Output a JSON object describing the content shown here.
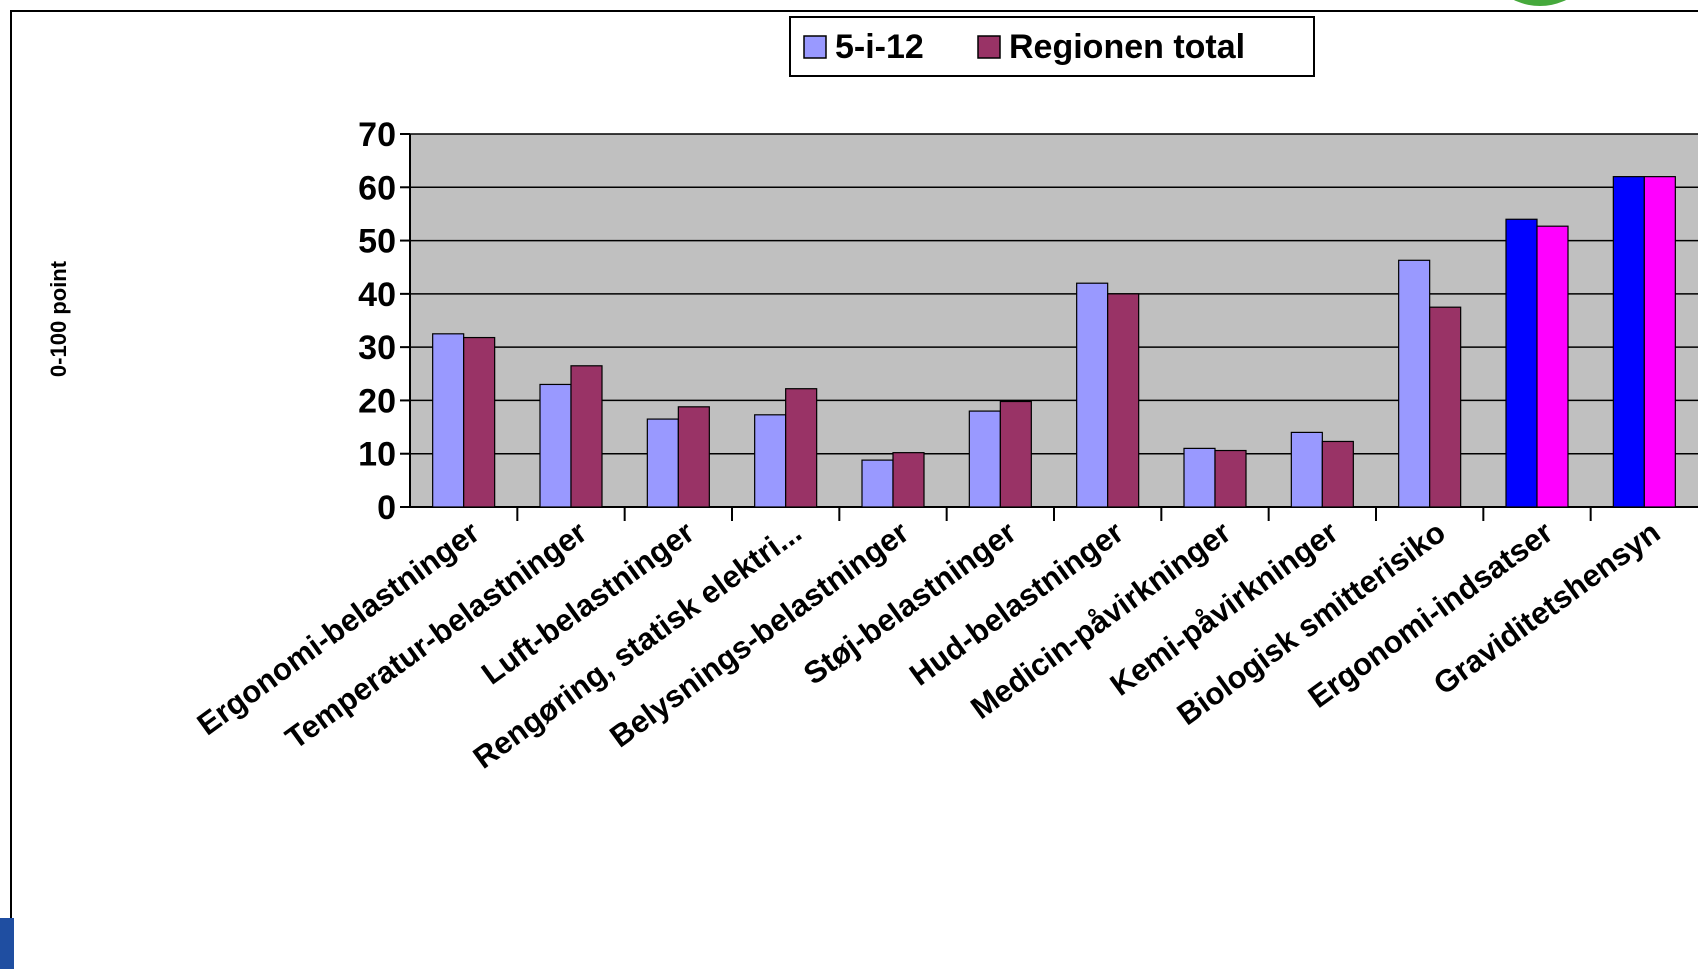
{
  "chart_data": {
    "type": "bar",
    "title": "",
    "xlabel": "",
    "ylabel": "0-100 point",
    "ylim": [
      0,
      70
    ],
    "yticks": [
      0,
      10,
      20,
      30,
      40,
      50,
      60,
      70
    ],
    "grid": true,
    "legend_position": "top-center",
    "categories": [
      "Ergonomi-belastninger",
      "Temperatur-belastninger",
      "Luft-belastninger",
      "Rengøring, statisk elektri...",
      "Belysnings-belastninger",
      "Støj-belastninger",
      "Hud-belastninger",
      "Medicin-påvirkninger",
      "Kemi-påvirkninger",
      "Biologisk smitterisiko",
      "Ergonomi-indsatser",
      "Graviditetshensyn"
    ],
    "series": [
      {
        "name": "5-i-12",
        "color": "#9999ff",
        "highlight_color": "#0000ff",
        "values": [
          32.5,
          23,
          16.5,
          17.3,
          8.8,
          18,
          42,
          11,
          14,
          46.3,
          54,
          62
        ]
      },
      {
        "name": "Regionen total",
        "color": "#993366",
        "highlight_color": "#ff00ff",
        "values": [
          31.8,
          26.5,
          18.8,
          22.2,
          10.2,
          19.8,
          40,
          10.6,
          12.3,
          37.5,
          52.7,
          62
        ]
      }
    ],
    "highlighted_categories": [
      "Ergonomi-indsatser",
      "Graviditetshensyn"
    ],
    "plot_background": "#c0c0c0"
  }
}
